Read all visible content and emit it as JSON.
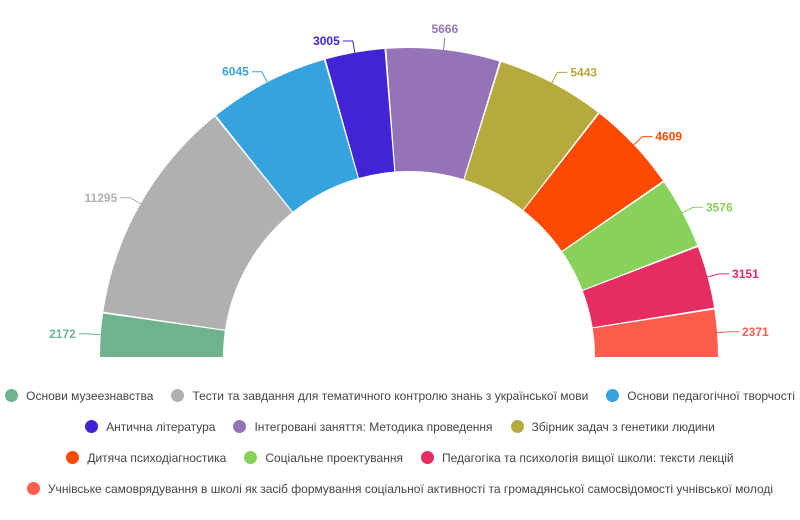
{
  "chart_data": {
    "type": "pie",
    "variant": "semicircle-donut",
    "title": "",
    "series": [
      {
        "name": "Основи музеезнавства",
        "value": 2172,
        "color": "#6fb38e"
      },
      {
        "name": "Тести та завдання для тематичного контролю знань з української мови",
        "value": 11295,
        "color": "#b0b0b0"
      },
      {
        "name": "Основи педагогічної творчості",
        "value": 6045,
        "color": "#35a3de"
      },
      {
        "name": "Антична література",
        "value": 3005,
        "color": "#4223d6"
      },
      {
        "name": "Інтегровані заняття: Методика проведення",
        "value": 5666,
        "color": "#9473b6"
      },
      {
        "name": "Збірник задач з генетики людини",
        "value": 5443,
        "color": "#b6a93d"
      },
      {
        "name": "Дитяча психодіагностика",
        "value": 4609,
        "color": "#fc4a02"
      },
      {
        "name": "Соціальне проектування",
        "value": 3576,
        "color": "#88d15a"
      },
      {
        "name": "Педагогіка та психологія вищої школи: тексти лекцій",
        "value": 3151,
        "color": "#e52d62"
      },
      {
        "name": "Учнівське самоврядування в школі як засіб формування соціальної активності та громадянської самосвідомості учнівської молоді",
        "value": 2371,
        "color": "#fd5d4c"
      }
    ],
    "legend_position": "bottom",
    "legend_rows": [
      [
        0,
        1,
        2
      ],
      [
        3,
        4,
        5
      ],
      [
        6,
        7,
        8
      ],
      [
        9
      ]
    ]
  }
}
